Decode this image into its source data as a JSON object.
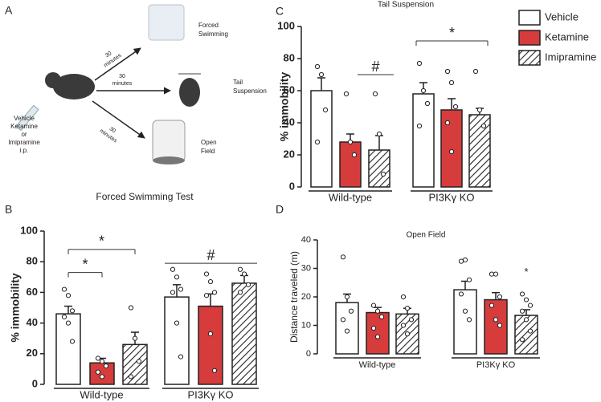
{
  "panel_a": {
    "panel_label": "A",
    "treatment": [
      "Vehicle",
      "Ketamine",
      "or",
      "Imipramine",
      "i.p."
    ],
    "intervals": [
      [
        "30",
        "minutes"
      ],
      [
        "30",
        "minutes"
      ],
      [
        "30",
        "minutes"
      ]
    ],
    "tests": [
      [
        "Forced",
        "Swimming"
      ],
      [
        "Tail",
        "Suspension"
      ],
      [
        "Open",
        "Field"
      ]
    ]
  },
  "chart_data": [
    {
      "type": "bar",
      "panel_label": "B",
      "title": "Forced Swimming Test",
      "ylabel": "% immobility",
      "categories": [
        "Wild-type",
        "PI3Kγ KO"
      ],
      "ylim": [
        0,
        100
      ],
      "yticks": [
        0,
        20,
        40,
        60,
        80,
        100
      ],
      "series": [
        {
          "color": "#ffffff",
          "values": [
            46,
            57
          ],
          "errors": [
            5,
            8
          ],
          "points": [
            [
              62,
              58,
              48,
              44,
              40,
              28
            ],
            [
              75,
              70,
              62,
              60,
              40,
              18
            ]
          ]
        },
        {
          "color": "#d63c3c",
          "values": [
            14,
            51
          ],
          "errors": [
            3,
            8
          ],
          "points": [
            [
              17,
              15,
              12,
              8,
              5
            ],
            [
              72,
              67,
              60,
              58,
              33,
              9
            ]
          ]
        },
        {
          "color": "#ffffff",
          "pattern": "hatched",
          "values": [
            26,
            66
          ],
          "errors": [
            8,
            5
          ],
          "points": [
            [
              50,
              30,
              15,
              5
            ],
            [
              75,
              72,
              65,
              60
            ]
          ]
        }
      ],
      "annotations": [
        "*",
        "*",
        "#"
      ]
    },
    {
      "type": "bar",
      "panel_label": "C",
      "title": "Tail Suspension",
      "ylabel": "% immobility",
      "categories": [
        "Wild-type",
        "PI3Kγ KO"
      ],
      "ylim": [
        0,
        100
      ],
      "yticks": [
        0,
        20,
        40,
        60,
        80,
        100
      ],
      "series": [
        {
          "name": "Vehicle",
          "color": "#ffffff",
          "values": [
            60,
            58
          ],
          "errors": [
            8,
            7
          ],
          "points": [
            [
              75,
              70,
              48,
              28
            ],
            [
              77,
              60,
              52,
              38
            ]
          ]
        },
        {
          "name": "Ketamine",
          "color": "#d63c3c",
          "values": [
            28,
            48
          ],
          "errors": [
            5,
            7
          ],
          "points": [
            [
              58,
              28,
              20
            ],
            [
              72,
              65,
              50,
              40,
              22
            ]
          ]
        },
        {
          "name": "Imipramine",
          "color": "#ffffff",
          "pattern": "hatched",
          "values": [
            23,
            45
          ],
          "errors": [
            9,
            4
          ],
          "points": [
            [
              58,
              33,
              8
            ],
            [
              72,
              48,
              38
            ]
          ]
        }
      ],
      "annotations": [
        "#",
        "*"
      ]
    },
    {
      "type": "bar",
      "panel_label": "D",
      "title": "Open Field",
      "ylabel": "Distance traveled (m)",
      "categories": [
        "Wild-type",
        "PI3Kγ KO"
      ],
      "ylim": [
        0,
        40
      ],
      "yticks": [
        0,
        10,
        20,
        30,
        40
      ],
      "series": [
        {
          "color": "#ffffff",
          "values": [
            18,
            22.5
          ],
          "errors": [
            3,
            3
          ],
          "points": [
            [
              34,
              20,
              15,
              12,
              8
            ],
            [
              32.5,
              33,
              26,
              21,
              15,
              12
            ]
          ]
        },
        {
          "color": "#d63c3c",
          "values": [
            14.5,
            19
          ],
          "errors": [
            1.8,
            2.5
          ],
          "points": [
            [
              17,
              15,
              13,
              9,
              6
            ],
            [
              28,
              28,
              20,
              17,
              12,
              10
            ]
          ]
        },
        {
          "color": "#ffffff",
          "pattern": "hatched",
          "values": [
            14,
            13.5
          ],
          "errors": [
            2,
            2
          ],
          "points": [
            [
              20,
              16,
              12,
              10,
              7
            ],
            [
              21,
              19,
              17,
              15,
              12,
              8,
              5
            ]
          ]
        }
      ],
      "annotations": [
        "*"
      ]
    }
  ]
}
